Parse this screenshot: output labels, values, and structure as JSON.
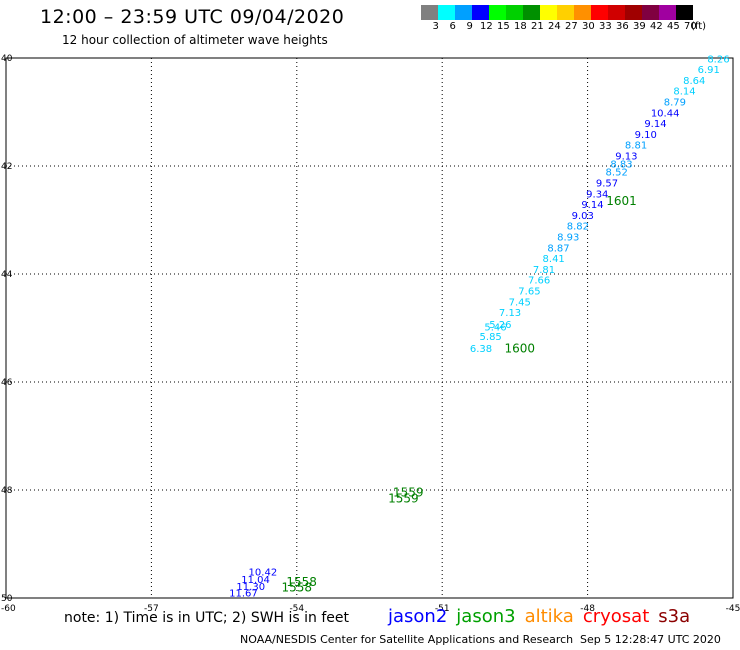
{
  "header": {
    "title": "12:00 – 23:59 UTC 09/04/2020",
    "subtitle": "12 hour collection of altimeter wave heights"
  },
  "legend": {
    "unit": "(ft)",
    "bins": [
      {
        "label": "3",
        "color": "#808080"
      },
      {
        "label": "6",
        "color": "#00ffff"
      },
      {
        "label": "9",
        "color": "#00a0ff"
      },
      {
        "label": "12",
        "color": "#0000ff"
      },
      {
        "label": "15",
        "color": "#00ff00"
      },
      {
        "label": "18",
        "color": "#00d000"
      },
      {
        "label": "21",
        "color": "#009000"
      },
      {
        "label": "24",
        "color": "#ffff00"
      },
      {
        "label": "27",
        "color": "#ffd000"
      },
      {
        "label": "30",
        "color": "#ff9000"
      },
      {
        "label": "33",
        "color": "#ff0000"
      },
      {
        "label": "36",
        "color": "#d00000"
      },
      {
        "label": "39",
        "color": "#a00000"
      },
      {
        "label": "42",
        "color": "#800040"
      },
      {
        "label": "45",
        "color": "#a000a0"
      },
      {
        "label": "70",
        "color": "#000000"
      }
    ]
  },
  "map": {
    "lon_ticks": [
      "-57",
      "-54",
      "-51",
      "-48",
      "-45"
    ],
    "lat_ticks": [
      "40",
      "42",
      "44",
      "46",
      "48",
      "50"
    ],
    "corner_label": "-60",
    "lon_range": [
      -60,
      -45
    ],
    "lat_range": [
      40,
      50
    ],
    "swh_labels": [
      {
        "text": "8.26",
        "color": "#00d0ff",
        "lon": -45.3,
        "lat": 40.08
      },
      {
        "text": "6.91",
        "color": "#00d0ff",
        "lon": -45.5,
        "lat": 40.28
      },
      {
        "text": "8.64",
        "color": "#00d0ff",
        "lon": -45.8,
        "lat": 40.48
      },
      {
        "text": "8.14",
        "color": "#00d0ff",
        "lon": -46.0,
        "lat": 40.68
      },
      {
        "text": "8.79",
        "color": "#00a0ff",
        "lon": -46.2,
        "lat": 40.88
      },
      {
        "text": "10.44",
        "color": "#0000ff",
        "lon": -46.4,
        "lat": 41.08
      },
      {
        "text": "9.14",
        "color": "#0000ff",
        "lon": -46.6,
        "lat": 41.28
      },
      {
        "text": "9.10",
        "color": "#0000ff",
        "lon": -46.8,
        "lat": 41.48
      },
      {
        "text": "8.81",
        "color": "#00a0ff",
        "lon": -47.0,
        "lat": 41.68
      },
      {
        "text": "9.13",
        "color": "#0000ff",
        "lon": -47.2,
        "lat": 41.88
      },
      {
        "text": "8.83",
        "color": "#00a0ff",
        "lon": -47.3,
        "lat": 42.03
      },
      {
        "text": "8.52",
        "color": "#00a0ff",
        "lon": -47.4,
        "lat": 42.18
      },
      {
        "text": "9.57",
        "color": "#0000ff",
        "lon": -47.6,
        "lat": 42.38
      },
      {
        "text": "9.34",
        "color": "#0000ff",
        "lon": -47.8,
        "lat": 42.58
      },
      {
        "text": "9.14",
        "color": "#0000ff",
        "lon": -47.9,
        "lat": 42.78
      },
      {
        "text": "9.03",
        "color": "#0000ff",
        "lon": -48.1,
        "lat": 42.98
      },
      {
        "text": "8.82",
        "color": "#00a0ff",
        "lon": -48.2,
        "lat": 43.18
      },
      {
        "text": "8.93",
        "color": "#00a0ff",
        "lon": -48.4,
        "lat": 43.38
      },
      {
        "text": "8.87",
        "color": "#00a0ff",
        "lon": -48.6,
        "lat": 43.58
      },
      {
        "text": "8.41",
        "color": "#00d0ff",
        "lon": -48.7,
        "lat": 43.78
      },
      {
        "text": "7.81",
        "color": "#00d0ff",
        "lon": -48.9,
        "lat": 43.98
      },
      {
        "text": "7.66",
        "color": "#00d0ff",
        "lon": -49.0,
        "lat": 44.18
      },
      {
        "text": "7.65",
        "color": "#00d0ff",
        "lon": -49.2,
        "lat": 44.38
      },
      {
        "text": "7.45",
        "color": "#00d0ff",
        "lon": -49.4,
        "lat": 44.58
      },
      {
        "text": "7.13",
        "color": "#00d0ff",
        "lon": -49.6,
        "lat": 44.78
      },
      {
        "text": "5.26",
        "color": "#00d0ff",
        "lon": -49.8,
        "lat": 45.0
      },
      {
        "text": "5.85",
        "color": "#00d0ff",
        "lon": -50.0,
        "lat": 45.22
      },
      {
        "text": "5.46",
        "color": "#00d0ff",
        "lon": -49.9,
        "lat": 45.05
      },
      {
        "text": "6.38",
        "color": "#00d0ff",
        "lon": -50.2,
        "lat": 45.44
      }
    ],
    "time_labels": [
      {
        "text": "1601",
        "color": "#008000",
        "lon": -47.3,
        "lat": 42.72
      },
      {
        "text": "1600",
        "color": "#008000",
        "lon": -49.4,
        "lat": 45.45
      },
      {
        "text": "1559",
        "color": "#008000",
        "lon": -51.7,
        "lat": 48.12
      },
      {
        "text": "1559",
        "color": "#008000",
        "lon": -51.8,
        "lat": 48.23
      },
      {
        "text": "1558",
        "color": "#008000",
        "lon": -53.9,
        "lat": 49.78
      },
      {
        "text": "1558",
        "color": "#008000",
        "lon": -54.0,
        "lat": 49.88
      }
    ],
    "low_labels": [
      {
        "text": "11.67",
        "color": "#0000ff",
        "lon": -55.1,
        "lat": 49.97
      },
      {
        "text": "11.30",
        "color": "#0000ff",
        "lon": -54.95,
        "lat": 49.85
      },
      {
        "text": "11.04",
        "color": "#0000ff",
        "lon": -54.85,
        "lat": 49.72
      },
      {
        "text": "10.42",
        "color": "#0000ff",
        "lon": -54.7,
        "lat": 49.58
      }
    ]
  },
  "footer": {
    "note": "note: 1) Time is in UTC; 2) SWH is in feet",
    "satellites": [
      {
        "name": "jason2",
        "color": "#0000ff"
      },
      {
        "name": "jason3",
        "color": "#00a000"
      },
      {
        "name": "altika",
        "color": "#ff8c00"
      },
      {
        "name": "cryosat",
        "color": "#ff0000"
      },
      {
        "name": "s3a",
        "color": "#8b0000"
      }
    ],
    "credit": "NOAA/NESDIS Center for Satellite Applications and Research",
    "timestamp": "Sep  5 12:28:47 UTC 2020"
  }
}
